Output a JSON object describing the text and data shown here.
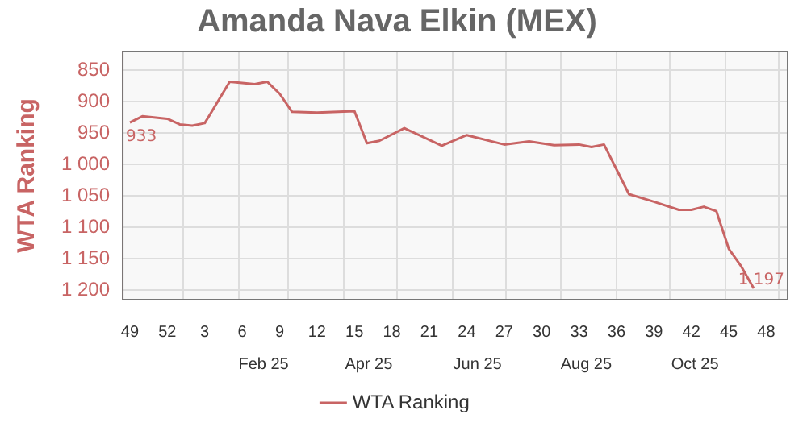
{
  "chart_data": {
    "type": "line",
    "title": "Amanda Nava Elkin (MEX)",
    "ylabel": "WTA Ranking",
    "x": [
      "2024-12-02",
      "2024-12-09",
      "2024-12-23",
      "2024-12-30",
      "2025-01-06",
      "2025-01-13",
      "2025-01-27",
      "2025-02-10",
      "2025-02-17",
      "2025-02-24",
      "2025-03-03",
      "2025-03-17",
      "2025-04-07",
      "2025-04-14",
      "2025-04-21",
      "2025-05-05",
      "2025-05-26",
      "2025-06-09",
      "2025-06-30",
      "2025-07-14",
      "2025-07-28",
      "2025-08-11",
      "2025-08-18",
      "2025-08-25",
      "2025-09-08",
      "2025-09-22",
      "2025-10-06",
      "2025-10-13",
      "2025-10-20",
      "2025-10-27",
      "2025-11-03",
      "2025-11-10",
      "2025-11-17"
    ],
    "series": [
      {
        "name": "WTA Ranking",
        "color": "#c86464",
        "values": [
          933,
          923,
          927,
          936,
          938,
          934,
          868,
          872,
          868,
          887,
          916,
          917,
          915,
          966,
          962,
          942,
          970,
          953,
          968,
          963,
          969,
          968,
          972,
          968,
          1047,
          1059,
          1072,
          1072,
          1067,
          1074,
          1134,
          1162,
          1197
        ],
        "value_labels": [
          "933",
          null,
          null,
          null,
          null,
          null,
          null,
          null,
          null,
          null,
          null,
          null,
          null,
          null,
          null,
          null,
          null,
          null,
          null,
          null,
          null,
          null,
          null,
          null,
          null,
          null,
          null,
          null,
          null,
          null,
          null,
          null,
          "1 197"
        ]
      }
    ],
    "xlim": [
      "2024-11-28",
      "2025-12-06"
    ],
    "xticks": [
      {
        "value": "2024-12-02",
        "label": "49"
      },
      {
        "value": "2024-12-23",
        "label": "52"
      },
      {
        "value": "2025-01-13",
        "label": "3"
      },
      {
        "value": "2025-02-03",
        "label": "6"
      },
      {
        "value": "2025-02-24",
        "label": "9"
      },
      {
        "value": "2025-03-17",
        "label": "12"
      },
      {
        "value": "2025-04-07",
        "label": "15"
      },
      {
        "value": "2025-04-28",
        "label": "18"
      },
      {
        "value": "2025-05-19",
        "label": "21"
      },
      {
        "value": "2025-06-09",
        "label": "24"
      },
      {
        "value": "2025-06-30",
        "label": "27"
      },
      {
        "value": "2025-07-21",
        "label": "30"
      },
      {
        "value": "2025-08-11",
        "label": "33"
      },
      {
        "value": "2025-09-01",
        "label": "36"
      },
      {
        "value": "2025-09-22",
        "label": "39"
      },
      {
        "value": "2025-10-13",
        "label": "42"
      },
      {
        "value": "2025-11-03",
        "label": "45"
      },
      {
        "value": "2025-11-24",
        "label": "48"
      }
    ],
    "x2lim": [
      "2024-11-28",
      "2025-12-06"
    ],
    "x2ticks": [
      {
        "value": "2025-01-01",
        "label": null
      },
      {
        "value": "2025-02-01",
        "label": null
      },
      {
        "value": "2025-02-15",
        "label": "Feb 25"
      },
      {
        "value": "2025-03-01",
        "label": null
      },
      {
        "value": "2025-04-01",
        "label": null
      },
      {
        "value": "2025-04-15",
        "label": "Apr 25"
      },
      {
        "value": "2025-05-01",
        "label": null
      },
      {
        "value": "2025-06-01",
        "label": null
      },
      {
        "value": "2025-06-15",
        "label": "Jun 25"
      },
      {
        "value": "2025-07-01",
        "label": null
      },
      {
        "value": "2025-08-01",
        "label": null
      },
      {
        "value": "2025-08-15",
        "label": "Aug 25"
      },
      {
        "value": "2025-09-01",
        "label": null
      },
      {
        "value": "2025-10-01",
        "label": null
      },
      {
        "value": "2025-10-15",
        "label": "Oct 25"
      },
      {
        "value": "2025-11-01",
        "label": null
      },
      {
        "value": "2025-12-01",
        "label": null
      }
    ],
    "ylim": [
      1215,
      820
    ],
    "yticks": [
      850,
      900,
      950,
      {
        "value": 1000,
        "label": "1 000"
      },
      {
        "value": 1050,
        "label": "1 050"
      },
      {
        "value": 1100,
        "label": "1 100"
      },
      {
        "value": 1150,
        "label": "1 150"
      },
      {
        "value": 1200,
        "label": "1 200"
      }
    ],
    "grid": true,
    "legend": "bottom",
    "marker": "none",
    "line_style": "solid"
  }
}
